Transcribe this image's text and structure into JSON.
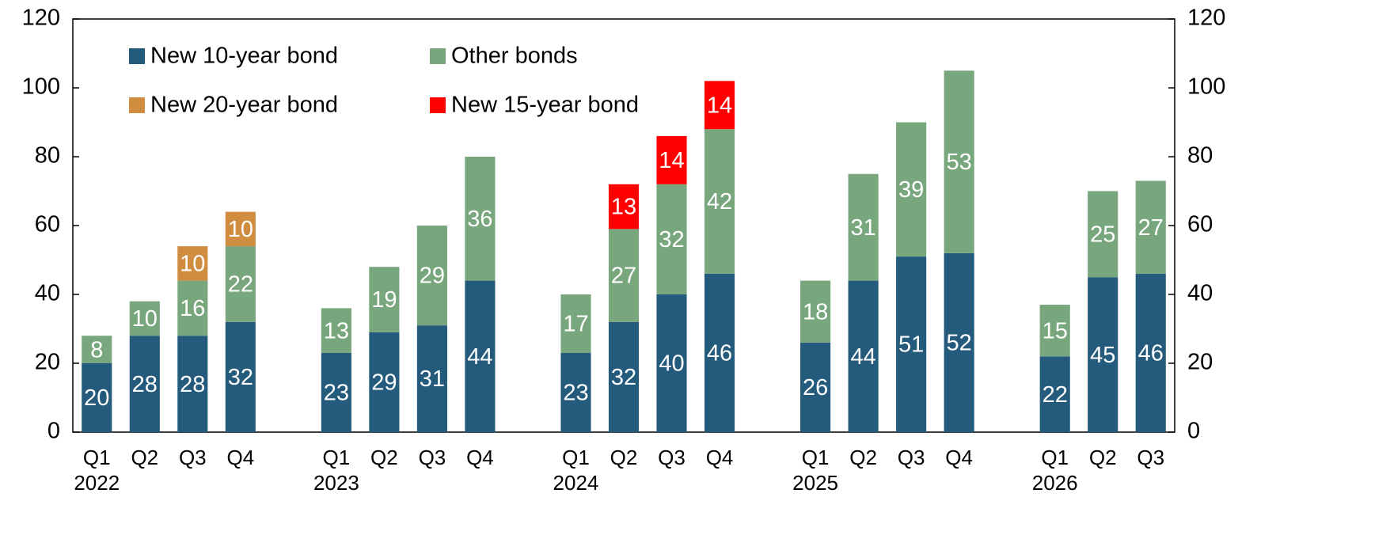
{
  "chart_data": {
    "type": "stacked_bar",
    "groups": [
      {
        "label": "2022",
        "categories": [
          "Q1",
          "Q2",
          "Q3",
          "Q4"
        ]
      },
      {
        "label": "2023",
        "categories": [
          "Q1",
          "Q2",
          "Q3",
          "Q4"
        ]
      },
      {
        "label": "2024",
        "categories": [
          "Q1",
          "Q2",
          "Q3",
          "Q4"
        ]
      },
      {
        "label": "2025",
        "categories": [
          "Q1",
          "Q2",
          "Q3",
          "Q4"
        ]
      },
      {
        "label": "2026",
        "categories": [
          "Q1",
          "Q2",
          "Q3"
        ]
      }
    ],
    "series": [
      {
        "name": "New 10-year bond",
        "color": "#245a7b",
        "values": [
          20,
          28,
          28,
          32,
          23,
          29,
          31,
          44,
          23,
          32,
          40,
          46,
          26,
          44,
          51,
          52,
          22,
          45,
          46
        ]
      },
      {
        "name": "Other bonds",
        "color": "#79a77d",
        "values": [
          8,
          10,
          16,
          22,
          13,
          19,
          29,
          36,
          17,
          27,
          32,
          42,
          18,
          31,
          39,
          53,
          15,
          25,
          27
        ]
      },
      {
        "name": "New 20-year bond",
        "color": "#d08d3f",
        "values": [
          null,
          null,
          10,
          10,
          null,
          null,
          null,
          null,
          null,
          null,
          null,
          null,
          null,
          null,
          null,
          null,
          null,
          null,
          null
        ]
      },
      {
        "name": "New 15-year bond",
        "color": "#ff0000",
        "values": [
          null,
          null,
          null,
          null,
          null,
          null,
          null,
          null,
          null,
          13,
          14,
          14,
          null,
          null,
          null,
          null,
          null,
          null,
          null
        ]
      }
    ],
    "ylim": [
      0,
      120
    ],
    "yticks": [
      0,
      20,
      40,
      60,
      80,
      100,
      120
    ],
    "y2lim": [
      0,
      120
    ],
    "y2ticks": [
      0,
      20,
      40,
      60,
      80,
      100,
      120
    ],
    "legend": "upper left"
  }
}
